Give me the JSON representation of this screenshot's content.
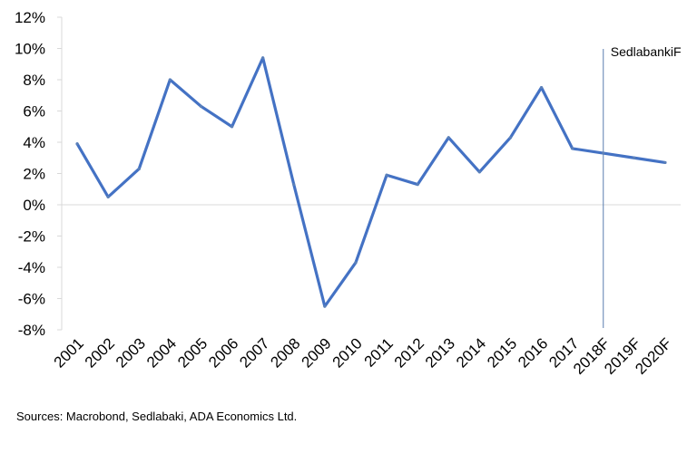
{
  "chart_data": {
    "type": "line",
    "title": "",
    "xlabel": "",
    "ylabel": "",
    "categories": [
      "2001",
      "2002",
      "2003",
      "2004",
      "2005",
      "2006",
      "2007",
      "2008",
      "2009",
      "2010",
      "2011",
      "2012",
      "2013",
      "2014",
      "2015",
      "2016",
      "2017",
      "2018F",
      "2019F",
      "2020F"
    ],
    "series": [
      {
        "values": [
          3.9,
          0.5,
          2.3,
          8.0,
          6.3,
          5.0,
          9.4,
          1.3,
          -6.5,
          -3.7,
          1.9,
          1.3,
          4.3,
          2.1,
          4.3,
          7.5,
          3.6,
          3.3,
          3.0,
          2.7
        ]
      }
    ],
    "ylim": [
      -8,
      12
    ],
    "yticks": [
      "12%",
      "10%",
      "8%",
      "6%",
      "4%",
      "2%",
      "0%",
      "-2%",
      "-4%",
      "-6%",
      "-8%"
    ],
    "grid": false,
    "legend": "none",
    "line_color": "#4472C4",
    "marker_color": "#5B80B8",
    "annotation": {
      "label": "SedlabankiF",
      "at_category": "2018F"
    }
  },
  "source_text": "Sources: Macrobond, Sedlabaki, ADA Economics Ltd."
}
